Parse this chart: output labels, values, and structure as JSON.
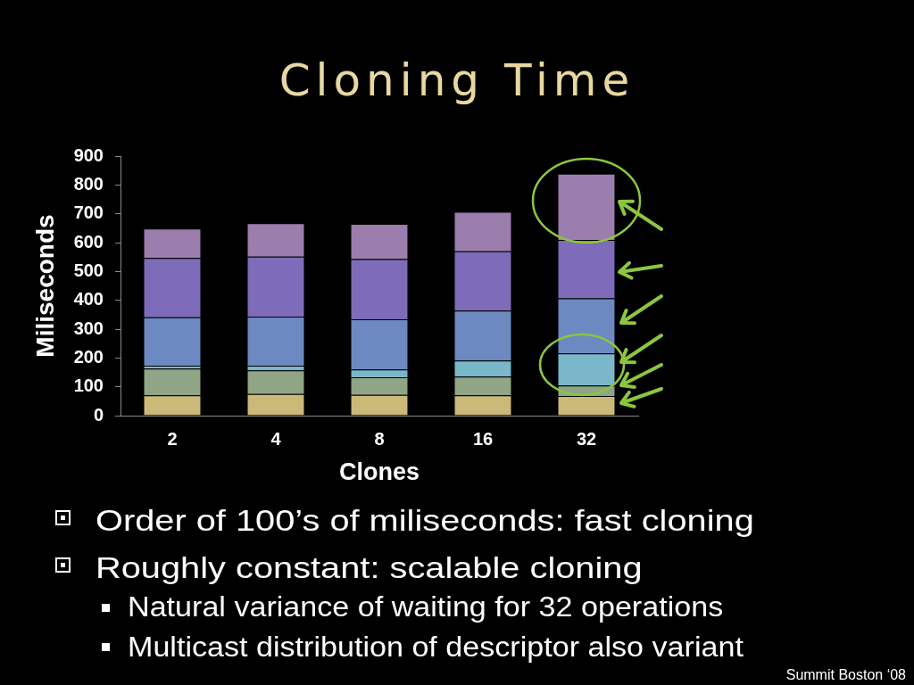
{
  "chart_data": {
    "type": "bar",
    "title": "Cloning Time",
    "xlabel": "Clones",
    "ylabel": "Miliseconds",
    "categories": [
      "2",
      "4",
      "8",
      "16",
      "32"
    ],
    "stacked": true,
    "series": [
      {
        "color": "#cbb97a",
        "values": [
          70,
          75,
          72,
          70,
          68
        ]
      },
      {
        "color": "#8fa585",
        "values": [
          93,
          82,
          61,
          65,
          36
        ]
      },
      {
        "color": "#7ab8c9",
        "values": [
          10,
          16,
          27,
          56,
          112
        ]
      },
      {
        "color": "#6d89c2",
        "values": [
          168,
          170,
          174,
          173,
          191
        ]
      },
      {
        "color": "#7e6cba",
        "values": [
          206,
          208,
          209,
          206,
          202
        ]
      },
      {
        "color": "#9b7dae",
        "values": [
          102,
          116,
          122,
          137,
          230
        ]
      }
    ],
    "ylim": [
      0,
      900
    ],
    "yticks": [
      0,
      100,
      200,
      300,
      400,
      500,
      600,
      700,
      800,
      900
    ],
    "annotations": [
      "Order of 100’s of miliseconds: fast cloning",
      "Roughly constant: scalable cloning",
      "Natural variance of waiting for 32 operations",
      "Multicast distribution of descriptor also variant",
      "Summit Boston ‘08"
    ]
  }
}
